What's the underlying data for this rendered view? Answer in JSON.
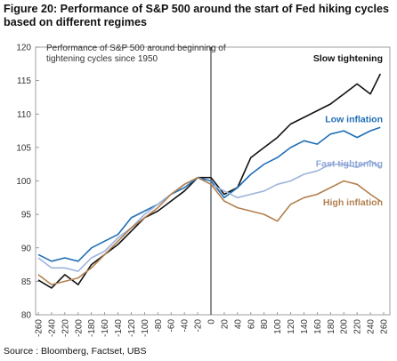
{
  "figure": {
    "title": "Figure 20: Performance of S&P 500 around the start of Fed hiking cycles based on different regimes",
    "source": "Source : Bloomberg, Factset, UBS"
  },
  "chart_data": {
    "type": "line",
    "title": "Performance of S&P 500 around beginning of tightening cycles since 1950",
    "title_lines": [
      "Performance of S&P 500 around beginning of",
      "tightening cycles since 1950"
    ],
    "xlabel": "",
    "ylabel": "",
    "xlim": [
      -260,
      260
    ],
    "ylim": [
      80,
      120
    ],
    "x_ticks": [
      -260,
      -240,
      -220,
      -200,
      -180,
      -160,
      -140,
      -120,
      -100,
      -80,
      -60,
      -40,
      -20,
      0,
      20,
      40,
      60,
      80,
      100,
      120,
      140,
      160,
      180,
      200,
      220,
      240,
      260
    ],
    "y_ticks": [
      80,
      85,
      90,
      95,
      100,
      105,
      110,
      115,
      120
    ],
    "vertical_line_at": 0,
    "grid": false,
    "legend": "inline labels at right end of each series",
    "series": [
      {
        "name": "Slow tightening",
        "color": "#111111",
        "label_color": "#111111",
        "x": [
          -260,
          -240,
          -220,
          -200,
          -180,
          -160,
          -140,
          -120,
          -100,
          -80,
          -60,
          -40,
          -20,
          0,
          20,
          40,
          60,
          80,
          100,
          120,
          140,
          160,
          180,
          200,
          220,
          240,
          255
        ],
        "y": [
          85.2,
          84.0,
          86.0,
          84.5,
          87.5,
          89.0,
          90.5,
          92.5,
          94.5,
          95.5,
          97.0,
          98.5,
          100.5,
          100.5,
          98.0,
          99.0,
          103.5,
          105.0,
          106.5,
          108.5,
          109.5,
          110.5,
          111.5,
          113.0,
          114.5,
          113.0,
          116.0
        ]
      },
      {
        "name": "Low inflation",
        "color": "#1f6fb5",
        "label_color": "#1f6fb5",
        "x": [
          -260,
          -240,
          -220,
          -200,
          -180,
          -160,
          -140,
          -120,
          -100,
          -80,
          -60,
          -40,
          -20,
          0,
          20,
          40,
          60,
          80,
          100,
          120,
          140,
          160,
          180,
          200,
          220,
          240,
          255
        ],
        "y": [
          89.0,
          88.0,
          88.5,
          88.0,
          90.0,
          91.0,
          92.0,
          94.5,
          95.5,
          96.5,
          98.0,
          99.0,
          100.5,
          100.0,
          97.5,
          99.0,
          101.0,
          102.5,
          103.5,
          105.0,
          106.0,
          105.5,
          107.0,
          107.5,
          106.5,
          107.5,
          108.0
        ]
      },
      {
        "name": "Fast tightening",
        "color": "#9db4dc",
        "label_color": "#8fa8d6",
        "x": [
          -260,
          -240,
          -220,
          -200,
          -180,
          -160,
          -140,
          -120,
          -100,
          -80,
          -60,
          -40,
          -20,
          0,
          20,
          40,
          60,
          80,
          100,
          120,
          140,
          160,
          180,
          200,
          220,
          240,
          255
        ],
        "y": [
          88.5,
          87.0,
          87.0,
          86.5,
          88.5,
          89.5,
          91.5,
          93.0,
          95.0,
          96.5,
          98.0,
          99.5,
          100.5,
          99.5,
          98.5,
          97.5,
          98.0,
          98.5,
          99.5,
          100.0,
          101.0,
          101.5,
          102.5,
          102.5,
          102.0,
          103.0,
          102.0
        ]
      },
      {
        "name": "High inflation",
        "color": "#b2804f",
        "label_color": "#b2804f",
        "x": [
          -260,
          -240,
          -220,
          -200,
          -180,
          -160,
          -140,
          -120,
          -100,
          -80,
          -60,
          -40,
          -20,
          0,
          20,
          40,
          60,
          80,
          100,
          120,
          140,
          160,
          180,
          200,
          220,
          240,
          255
        ],
        "y": [
          86.0,
          84.5,
          85.0,
          85.5,
          87.0,
          89.0,
          91.0,
          93.0,
          94.5,
          96.0,
          98.0,
          99.5,
          100.5,
          99.5,
          97.0,
          96.0,
          95.5,
          95.0,
          94.0,
          96.5,
          97.5,
          98.0,
          99.0,
          100.0,
          99.5,
          98.0,
          97.0
        ]
      }
    ]
  }
}
